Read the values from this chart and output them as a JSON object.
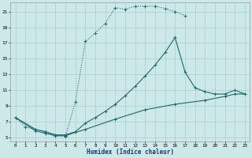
{
  "xlabel": "Humidex (Indice chaleur)",
  "bg_color": "#cce8e8",
  "grid_color": "#aacece",
  "line_color": "#1a6b6b",
  "xlim": [
    -0.5,
    23.5
  ],
  "ylim": [
    4.5,
    22.2
  ],
  "xticks": [
    0,
    1,
    2,
    3,
    4,
    5,
    6,
    7,
    8,
    9,
    10,
    11,
    12,
    13,
    14,
    15,
    16,
    17,
    18,
    19,
    20,
    21,
    22,
    23
  ],
  "yticks": [
    5,
    7,
    9,
    11,
    13,
    15,
    17,
    19,
    21
  ],
  "line1_x": [
    0,
    1,
    2,
    3,
    4,
    5,
    6,
    7,
    8,
    9,
    10,
    11,
    12,
    13,
    14,
    15,
    16,
    17
  ],
  "line1_y": [
    7.5,
    6.3,
    6.0,
    5.7,
    5.2,
    5.1,
    9.5,
    17.2,
    18.3,
    19.5,
    21.5,
    21.3,
    21.7,
    21.7,
    21.7,
    21.4,
    21.0,
    20.5
  ],
  "line2_x": [
    0,
    2,
    3,
    4,
    5,
    6,
    7,
    8,
    9,
    10,
    11,
    12,
    13,
    14,
    15,
    16,
    17,
    18,
    19,
    20,
    21,
    22,
    23
  ],
  "line2_y": [
    7.5,
    6.0,
    5.7,
    5.3,
    5.3,
    5.7,
    6.8,
    7.5,
    8.3,
    9.2,
    10.3,
    11.5,
    12.8,
    14.2,
    15.8,
    17.7,
    13.3,
    11.3,
    10.8,
    10.5,
    10.5,
    11.0,
    10.5
  ],
  "line3_x": [
    0,
    2,
    3,
    4,
    5,
    7,
    10,
    13,
    16,
    19,
    21,
    22,
    23
  ],
  "line3_y": [
    7.5,
    5.8,
    5.5,
    5.2,
    5.2,
    6.0,
    7.3,
    8.5,
    9.2,
    9.7,
    10.2,
    10.5,
    10.5
  ]
}
